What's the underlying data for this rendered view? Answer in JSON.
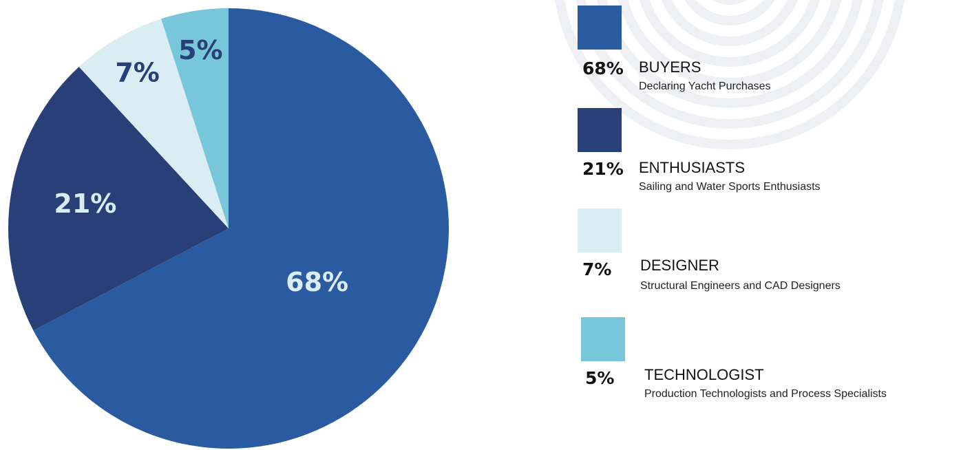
{
  "chart_data": {
    "type": "pie",
    "categories": [
      "BUYERS",
      "ENTHUSIASTS",
      "DESIGNER",
      "TECHNOLOGIST"
    ],
    "values": [
      68,
      21,
      7,
      5
    ],
    "slice_labels": [
      "68%",
      "21%",
      "7%",
      "5%"
    ],
    "colors": [
      "#2a5aa0",
      "#283f77",
      "#daedf3",
      "#78c6da"
    ],
    "slice_label_colors": [
      "#daedf3",
      "#daedf3",
      "#283f77",
      "#283f77"
    ],
    "start": "12 o'clock",
    "direction": "clockwise"
  },
  "legend": {
    "placement": "right",
    "items": [
      {
        "pct": "68%",
        "title": "BUYERS",
        "subtitle": "Declaring Yacht Purchases",
        "color": "#2a5aa0"
      },
      {
        "pct": "21%",
        "title": "ENTHUSIASTS",
        "subtitle": "Sailing and Water Sports Enthusiasts",
        "color": "#283f77"
      },
      {
        "pct": "7%",
        "title": "DESIGNER",
        "subtitle": "Structural Engineers and CAD Designers",
        "color": "#daedf3"
      },
      {
        "pct": "5%",
        "title": "TECHNOLOGIST",
        "subtitle": "Production Technologists and Process Specialists",
        "color": "#78c6da"
      }
    ]
  }
}
